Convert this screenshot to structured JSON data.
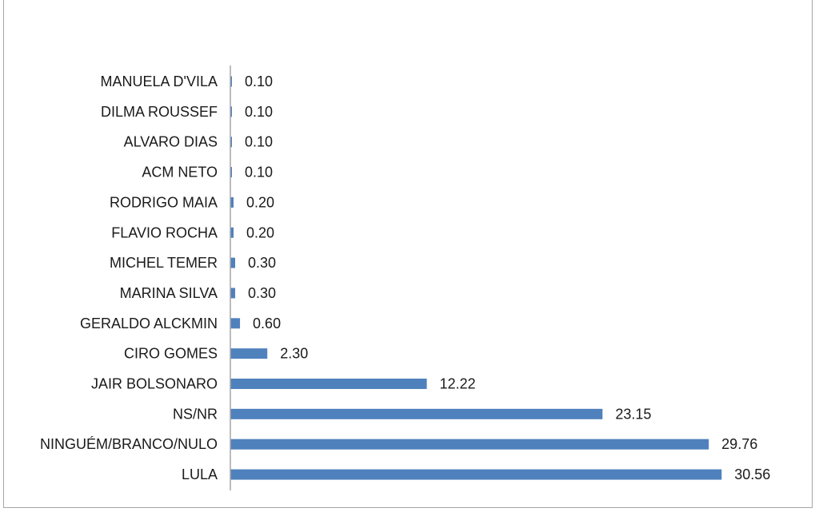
{
  "chart_data": {
    "type": "bar",
    "orientation": "horizontal",
    "title": "",
    "xlabel": "",
    "ylabel": "",
    "categories": [
      "MANUELA D'VILA",
      "DILMA ROUSSEF",
      "ALVARO DIAS",
      "ACM NETO",
      "RODRIGO MAIA",
      "FLAVIO ROCHA",
      "MICHEL TEMER",
      "MARINA SILVA",
      "GERALDO ALCKMIN",
      "CIRO GOMES",
      "JAIR BOLSONARO",
      "NS/NR",
      "NINGUÉM/BRANCO/NULO",
      "LULA"
    ],
    "values": [
      0.1,
      0.1,
      0.1,
      0.1,
      0.2,
      0.2,
      0.3,
      0.3,
      0.6,
      2.3,
      12.22,
      23.15,
      29.76,
      30.56
    ],
    "value_labels": [
      "0.10",
      "0.10",
      "0.10",
      "0.10",
      "0.20",
      "0.20",
      "0.30",
      "0.30",
      "0.60",
      "2.30",
      "12.22",
      "23.15",
      "29.76",
      "30.56"
    ],
    "xlim": [
      0,
      32
    ],
    "grid": false,
    "legend": "none",
    "colors": {
      "bar": "#4f81bd",
      "axis": "#a6a6a6",
      "text": "#1a1a1a",
      "frame": "#a6a6a6"
    }
  }
}
